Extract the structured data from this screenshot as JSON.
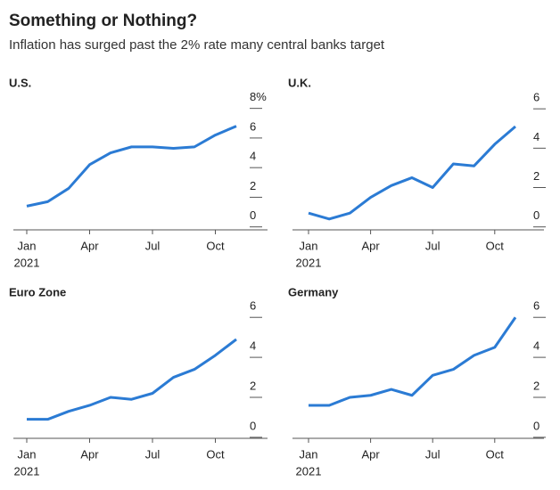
{
  "header": {
    "title": "Something or Nothing?",
    "subtitle": "Inflation has surged past the 2% rate many central banks target"
  },
  "chart_data": [
    {
      "type": "line",
      "title": "U.S.",
      "categories": [
        "Jan",
        null,
        null,
        "Apr",
        null,
        null,
        "Jul",
        null,
        null,
        "Oct",
        null,
        null
      ],
      "year_label": "2021",
      "values": [
        1.4,
        1.7,
        2.6,
        4.2,
        5.0,
        5.4,
        5.4,
        5.3,
        5.4,
        6.2,
        6.8,
        null
      ],
      "color": "#2b7bd4",
      "ylim": [
        -0.2,
        8.7
      ],
      "yticks": [
        0,
        2,
        4,
        6,
        {
          "value": 8,
          "label": "8%"
        }
      ]
    },
    {
      "type": "line",
      "title": "U.K.",
      "categories": [
        "Jan",
        null,
        null,
        "Apr",
        null,
        null,
        "Jul",
        null,
        null,
        "Oct",
        null,
        null
      ],
      "year_label": "2021",
      "values": [
        0.7,
        0.4,
        0.7,
        1.5,
        2.1,
        2.5,
        2.0,
        3.2,
        3.1,
        4.2,
        5.1,
        null
      ],
      "color": "#2b7bd4",
      "ylim": [
        -0.15,
        6.55
      ],
      "yticks": [
        0,
        2,
        4,
        6
      ]
    },
    {
      "type": "line",
      "title": "Euro Zone",
      "categories": [
        "Jan",
        null,
        null,
        "Apr",
        null,
        null,
        "Jul",
        null,
        null,
        "Oct",
        null,
        null
      ],
      "year_label": "2021",
      "values": [
        0.9,
        0.9,
        1.3,
        1.6,
        2.0,
        1.9,
        2.2,
        3.0,
        3.4,
        4.1,
        4.9,
        null
      ],
      "color": "#2b7bd4",
      "ylim": [
        -0.05,
        6.5
      ],
      "yticks": [
        0,
        2,
        4,
        6
      ]
    },
    {
      "type": "line",
      "title": "Germany",
      "categories": [
        "Jan",
        null,
        null,
        "Apr",
        null,
        null,
        "Jul",
        null,
        null,
        "Oct",
        null,
        null
      ],
      "year_label": "2021",
      "values": [
        1.6,
        1.6,
        2.0,
        2.1,
        2.4,
        2.1,
        3.1,
        3.4,
        4.1,
        4.5,
        6.0,
        null
      ],
      "color": "#2b7bd4",
      "ylim": [
        -0.05,
        6.5
      ],
      "yticks": [
        0,
        2,
        4,
        6
      ]
    }
  ]
}
